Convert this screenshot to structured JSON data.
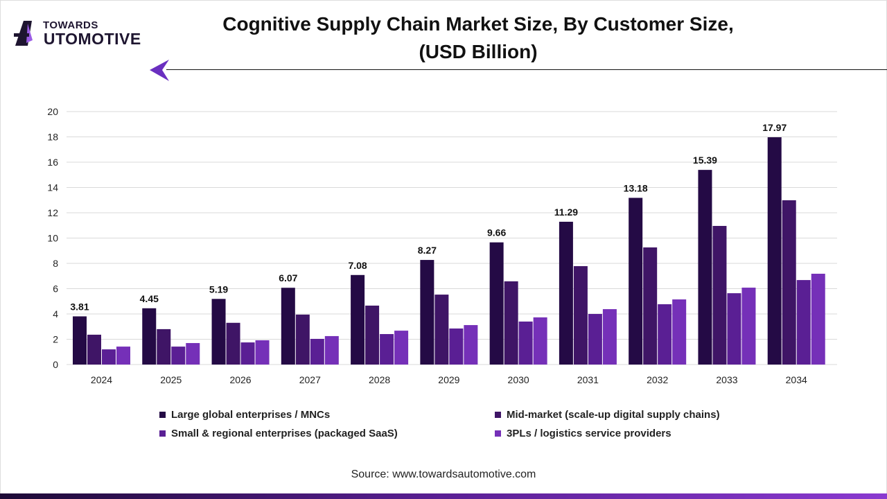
{
  "brand": {
    "logo_top": "TOWARDS",
    "logo_bottom": "AUTOMOTIVE"
  },
  "source": "Source: www.towardsautomotive.com",
  "colors": {
    "large": "#240a45",
    "mid": "#3f1566",
    "small": "#5a1f94",
    "threepl": "#7530b8",
    "grid": "#d9d9d9",
    "accent": "#7a3fd0"
  },
  "chart_data": {
    "type": "bar",
    "title": [
      "Cognitive Supply Chain Market Size, By Customer Size,",
      "(USD Billion)"
    ],
    "xlabel": "",
    "ylabel": "",
    "ylim": [
      0,
      20
    ],
    "yticks": [
      "0",
      "2",
      "4",
      "6",
      "8",
      "10",
      "12",
      "14",
      "16",
      "18",
      "20"
    ],
    "grid": true,
    "legend_position": "bottom",
    "categories": [
      "2024",
      "2025",
      "2026",
      "2027",
      "2028",
      "2029",
      "2030",
      "2031",
      "2032",
      "2033",
      "2034"
    ],
    "series": [
      {
        "name": "Large global enterprises / MNCs",
        "values": [
          3.81,
          4.45,
          5.19,
          6.07,
          7.08,
          8.27,
          9.66,
          11.29,
          13.18,
          15.39,
          17.97
        ],
        "labels": [
          "3.81",
          "4.45",
          "5.19",
          "6.07",
          "7.08",
          "8.27",
          "9.66",
          "11.29",
          "13.18",
          "15.39",
          "17.97"
        ]
      },
      {
        "name": "Mid-market (scale-up digital supply chains)",
        "values": [
          2.36,
          2.8,
          3.3,
          3.95,
          4.66,
          5.53,
          6.58,
          7.78,
          9.26,
          10.96,
          12.99
        ]
      },
      {
        "name": "Small & regional enterprises (packaged SaaS)",
        "values": [
          1.2,
          1.42,
          1.75,
          2.03,
          2.41,
          2.85,
          3.4,
          4.0,
          4.77,
          5.64,
          6.68
        ]
      },
      {
        "name": "3PLs / logistics service providers",
        "values": [
          1.42,
          1.7,
          1.92,
          2.25,
          2.68,
          3.12,
          3.73,
          4.38,
          5.15,
          6.08,
          7.18
        ]
      }
    ]
  }
}
